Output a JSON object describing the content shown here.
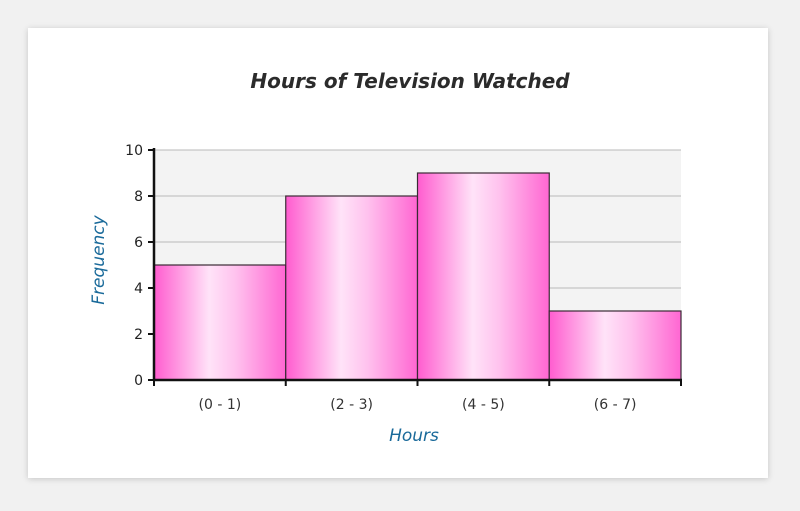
{
  "chart_data": {
    "type": "bar",
    "title": "Hours of Television Watched",
    "xlabel": "Hours",
    "ylabel": "Frequency",
    "categories": [
      "(0 - 1)",
      "(2 - 3)",
      "(4 - 5)",
      "(6 - 7)"
    ],
    "values": [
      5,
      8,
      9,
      3
    ],
    "ylim": [
      0,
      10
    ],
    "yticks": [
      0,
      2,
      4,
      6,
      8,
      10
    ],
    "grid": true,
    "legend": "none",
    "colors": {
      "bar_edge": "#ff33cc",
      "bar_center": "#ffddf6",
      "bar_side": "#ff77d6",
      "bar_outline": "#3a2a35",
      "plot_background": "#f3f3f3",
      "grid": "#b8b8b8",
      "axis": "#111111",
      "label_blue": "#1a6a9a"
    }
  }
}
